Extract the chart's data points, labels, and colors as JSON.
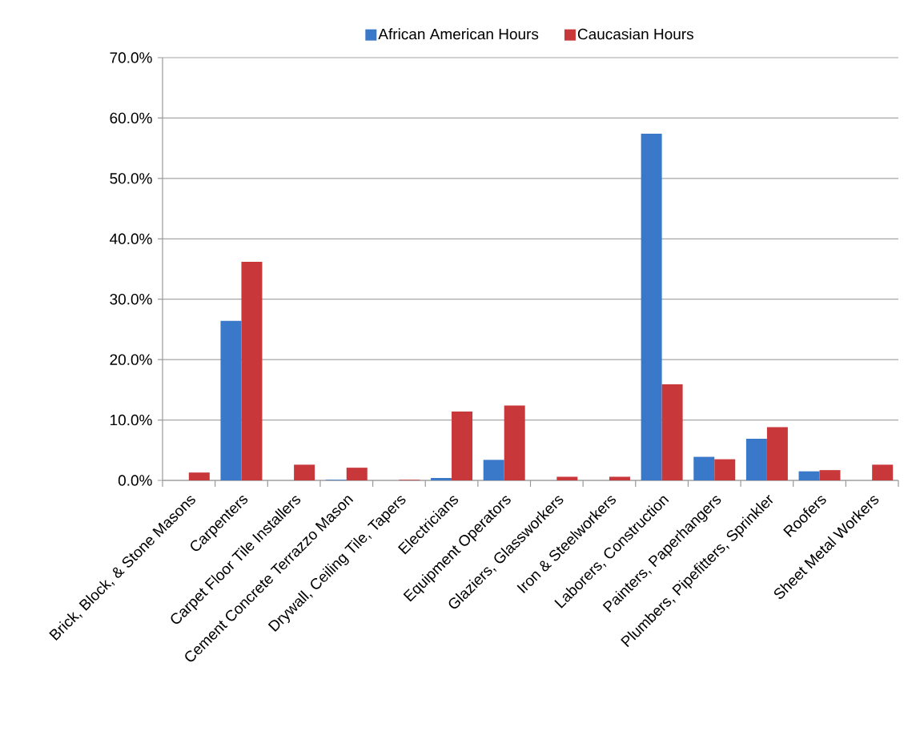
{
  "chart_data": {
    "type": "bar",
    "categories": [
      "Brick, Block, & Stone Masons",
      "Carpenters",
      "Carpet Floor Tile Installers",
      "Cement Concrete Terrazzo Mason",
      "Drywall, Ceiling Tile, Tapers",
      "Electricians",
      "Equipment Operators",
      "Glaziers, Glassworkers",
      "Iron & Steelworkers",
      "Laborers, Construction",
      "Painters, Paperhangers",
      "Plumbers, Pipefitters, Sprinkler",
      "Roofers",
      "Sheet Metal Workers"
    ],
    "series": [
      {
        "name": "African American Hours",
        "color": "#3a78c9",
        "values": [
          0,
          26.4,
          0,
          0.1,
          0,
          0.4,
          3.4,
          0,
          0,
          57.4,
          3.9,
          6.9,
          1.5,
          0
        ]
      },
      {
        "name": "Caucasian Hours",
        "color": "#c8373a",
        "values": [
          1.3,
          36.2,
          2.6,
          2.1,
          0.1,
          11.4,
          12.4,
          0.6,
          0.6,
          15.9,
          3.5,
          8.8,
          1.7,
          2.6
        ]
      }
    ],
    "ylim": [
      0,
      70
    ],
    "yticks": [
      {
        "value": 0,
        "label": "0.0%"
      },
      {
        "value": 10,
        "label": "10.0%"
      },
      {
        "value": 20,
        "label": "20.0%"
      },
      {
        "value": 30,
        "label": "30.0%"
      },
      {
        "value": 40,
        "label": "40.0%"
      },
      {
        "value": 50,
        "label": "50.0%"
      },
      {
        "value": 60,
        "label": "60.0%"
      },
      {
        "value": 70,
        "label": "70.0%"
      }
    ],
    "grid": "y",
    "legend": "top"
  }
}
